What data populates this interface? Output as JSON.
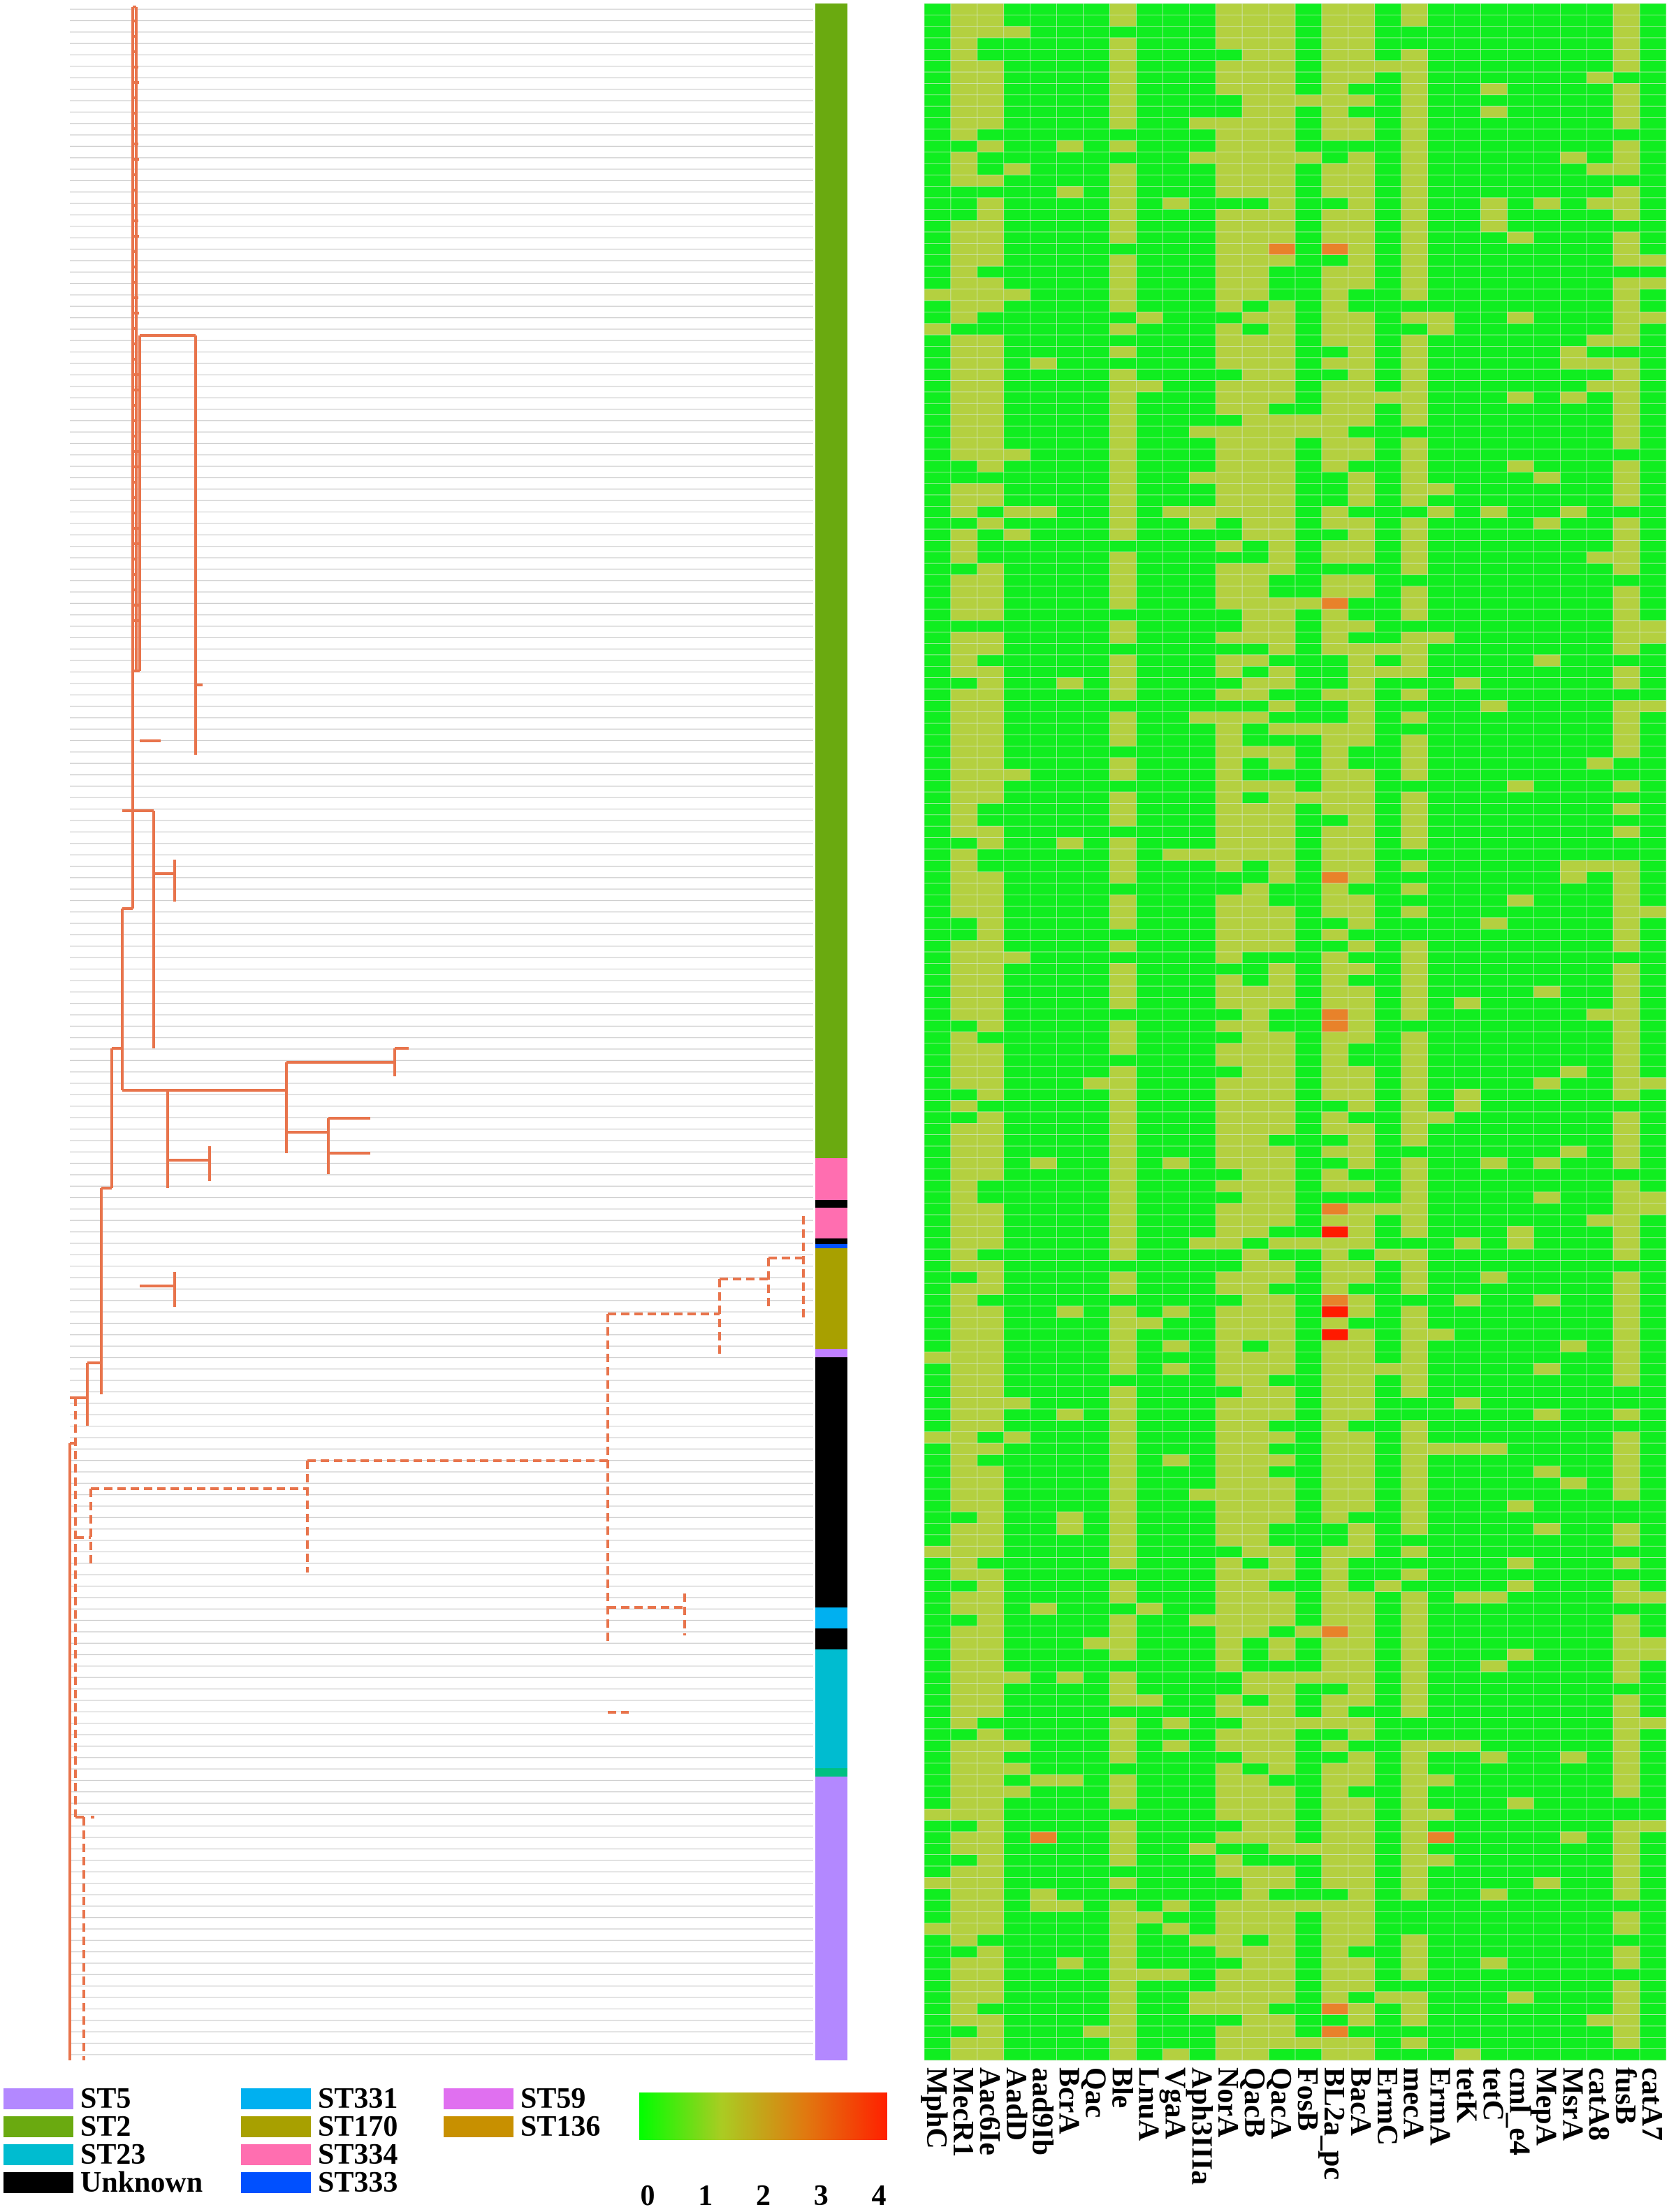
{
  "chart_data": [
    {
      "type": "heatmap",
      "columns": [
        "MphC",
        "MecR1",
        "Aac6Ie",
        "AadD",
        "aad9Ib",
        "BcrA",
        "Qac",
        "Ble",
        "LnuA",
        "VgaA",
        "Aph3IIIa",
        "NorA",
        "QacB",
        "QacA",
        "FosB",
        "BL2a_pc",
        "BacA",
        "ErmC",
        "mecA",
        "ErmA",
        "tetK",
        "tetC",
        "cml_e4",
        "MepA",
        "MsrA",
        "catA8",
        "fusB",
        "catA7"
      ],
      "rows": 180,
      "value_range": [
        0,
        4
      ],
      "typical_column_values": [
        0,
        1,
        1,
        0,
        0,
        0,
        0,
        1,
        0,
        0,
        0,
        1,
        1,
        1,
        0,
        1,
        1,
        0,
        1,
        0,
        0,
        0,
        0,
        0,
        0,
        0,
        1,
        0
      ],
      "note_values": "Most cells 0 (green) or 1 (yellow-green); scattered 2 (orange) and 4 (red) cells in BL2a_pc"
    },
    {
      "type": "colorbar",
      "ticks": [
        "0",
        "1",
        "2",
        "3",
        "4"
      ],
      "colors": [
        "#00ff00",
        "#aacc22",
        "#e07a10",
        "#ff2000"
      ]
    },
    {
      "type": "legend",
      "items": [
        {
          "label": "ST5",
          "color": "#b388ff"
        },
        {
          "label": "ST2",
          "color": "#6aaa10"
        },
        {
          "label": "ST23",
          "color": "#00bcd0"
        },
        {
          "label": "Unknown",
          "color": "#000000"
        },
        {
          "label": "ST331",
          "color": "#00b0f0"
        },
        {
          "label": "ST170",
          "color": "#a8a000"
        },
        {
          "label": "ST334",
          "color": "#ff6eb0"
        },
        {
          "label": "ST333",
          "color": "#0050ff"
        },
        {
          "label": "ST59",
          "color": "#e070f0"
        },
        {
          "label": "ST136",
          "color": "#c89000"
        }
      ]
    },
    {
      "type": "annotation_strip",
      "segments": [
        {
          "color": "#6aaa10",
          "rows": [
            0,
            118
          ]
        },
        {
          "color": "#0050ff",
          "rows": [
            118,
            121
          ]
        },
        {
          "color": "#000000",
          "rows": [
            121,
            123
          ]
        },
        {
          "color": "#0050ff",
          "rows": [
            123,
            127
          ]
        },
        {
          "color": "#e070f0",
          "rows": [
            127,
            136
          ]
        },
        {
          "color": "#a8a000",
          "rows": [
            136,
            142
          ]
        },
        {
          "color": "#00c080",
          "rows": [
            142,
            149
          ]
        },
        {
          "color": "#a8a000",
          "rows": [
            149,
            151
          ]
        },
        {
          "color": "#0050ff",
          "rows": [
            151,
            153
          ]
        },
        {
          "color": "#ff6eb0",
          "rows": [
            153,
            157
          ]
        },
        {
          "color": "#000000",
          "rows": [
            157,
            160
          ]
        },
        {
          "color": "#00c080",
          "rows": [
            160,
            162
          ]
        },
        {
          "color": "#000000",
          "rows": [
            162,
            163
          ]
        },
        {
          "color": "#00c080",
          "rows": [
            163,
            164
          ]
        },
        {
          "color": "#000000",
          "rows": [
            164,
            165
          ]
        },
        {
          "color": "#ff6eb0",
          "rows": [
            165,
            168
          ]
        }
      ]
    }
  ],
  "colors": {
    "tree_branch": "#e8744c",
    "tree_leaf_line": "#cfcfcf",
    "grid": "#d8e8d0",
    "cell_0": "#10ee20",
    "cell_1": "#b4d040",
    "cell_2": "#e8822a",
    "cell_4": "#ff1a00"
  }
}
